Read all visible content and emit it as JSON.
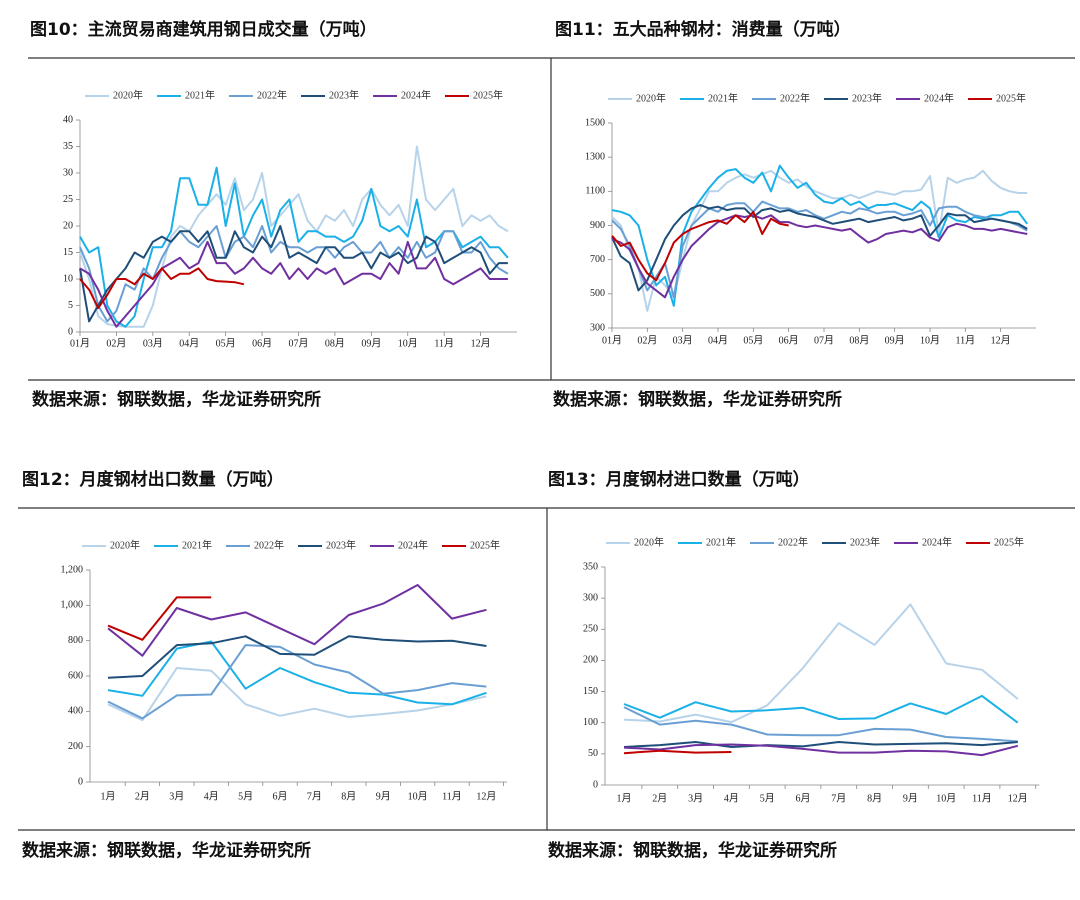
{
  "chart_data": [
    {
      "type": "line",
      "title": "图10：主流贸易商建筑用钢日成交量（万吨）",
      "source": "数据来源：钢联数据，华龙证券研究所",
      "x": [
        0,
        1,
        2,
        3,
        4,
        5,
        6,
        7,
        8,
        9,
        10,
        11,
        12,
        13,
        14,
        15,
        16,
        17,
        18,
        19,
        20,
        21,
        22,
        23,
        24,
        25,
        26,
        27,
        28,
        29,
        30,
        31,
        32,
        33,
        34,
        35,
        36,
        37,
        38,
        39,
        40,
        41,
        42,
        43,
        44,
        45,
        46,
        47
      ],
      "xlim": [
        0,
        48
      ],
      "xticks": [
        {
          "value": 0,
          "label": "01月"
        },
        {
          "value": 4,
          "label": "02月"
        },
        {
          "value": 8,
          "label": "03月"
        },
        {
          "value": 12,
          "label": "04月"
        },
        {
          "value": 16,
          "label": "05月"
        },
        {
          "value": 20,
          "label": "06月"
        },
        {
          "value": 24,
          "label": "07月"
        },
        {
          "value": 28,
          "label": "08月"
        },
        {
          "value": 32,
          "label": "09月"
        },
        {
          "value": 36,
          "label": "10月"
        },
        {
          "value": 40,
          "label": "11月"
        },
        {
          "value": 44,
          "label": "12月"
        }
      ],
      "ylim": [
        0,
        40
      ],
      "yticks": [
        0,
        5,
        10,
        15,
        20,
        25,
        30,
        35,
        40
      ],
      "series": [
        {
          "name": "2020年",
          "color": "#b7d3ea",
          "values": [
            15,
            10,
            3,
            1.5,
            1.2,
            1,
            1,
            1,
            5,
            12,
            18,
            20,
            19,
            22,
            24,
            26,
            24,
            29,
            23,
            25,
            30,
            20,
            22,
            24,
            26,
            21,
            19,
            22,
            21,
            23,
            20,
            25,
            27,
            24,
            22,
            24,
            20,
            35,
            25,
            23,
            25,
            27,
            20,
            22,
            21,
            22,
            20,
            19
          ]
        },
        {
          "name": "2021年",
          "color": "#1ab0e8",
          "values": [
            18,
            15,
            16,
            5,
            2,
            1,
            3,
            10,
            16,
            16,
            19,
            29,
            29,
            24,
            24,
            31,
            20,
            28,
            18,
            22,
            25,
            18,
            23,
            25,
            17,
            19,
            19,
            18,
            18,
            17,
            18,
            21,
            27,
            20,
            19,
            20,
            18,
            25,
            16,
            17,
            19,
            19,
            16,
            17,
            18,
            16,
            16,
            14
          ]
        },
        {
          "name": "2022年",
          "color": "#6a9fd4",
          "values": [
            16,
            12,
            5,
            2,
            4,
            9,
            8,
            12,
            10,
            14,
            17,
            19,
            17,
            16,
            18,
            20,
            14,
            17,
            18,
            16,
            20,
            15,
            17,
            16,
            16,
            15,
            16,
            16,
            14,
            16,
            17,
            15,
            15,
            17,
            14,
            16,
            14,
            17,
            14,
            15,
            19,
            19,
            15,
            15,
            17,
            14,
            12,
            11
          ]
        },
        {
          "name": "2023年",
          "color": "#1f4e79",
          "values": [
            12,
            2,
            5,
            8,
            10,
            12,
            15,
            14,
            17,
            18,
            17,
            19,
            19,
            17,
            19,
            14,
            14,
            19,
            16,
            15,
            18,
            16,
            20,
            14,
            15,
            14,
            13,
            16,
            16,
            14,
            14,
            15,
            12,
            15,
            14,
            15,
            13,
            14,
            18,
            17,
            13,
            14,
            15,
            16,
            15,
            11,
            13,
            13
          ]
        },
        {
          "name": "2024年",
          "color": "#7030a0",
          "values": [
            12,
            11,
            8,
            4,
            1,
            3,
            5,
            7,
            9,
            12,
            13,
            14,
            12,
            13,
            17,
            13,
            13,
            11,
            12,
            14,
            12,
            11,
            13,
            10,
            12,
            10,
            12,
            11,
            12,
            9,
            10,
            11,
            11,
            10,
            13,
            11,
            17,
            12,
            12,
            14,
            10,
            9,
            10,
            11,
            12,
            10,
            10,
            10
          ]
        },
        {
          "name": "2025年",
          "color": "#c00000",
          "values": [
            10,
            8,
            4.5,
            7,
            10,
            10,
            9,
            11,
            10,
            12,
            10,
            11,
            11,
            12,
            10,
            9.6,
            9.5,
            9.4,
            9,
            null,
            null,
            null,
            null,
            null,
            null,
            null,
            null,
            null,
            null,
            null,
            null,
            null,
            null,
            null,
            null,
            null,
            null,
            null,
            null,
            null,
            null,
            null,
            null,
            null,
            null,
            null,
            null,
            null
          ]
        }
      ]
    },
    {
      "type": "line",
      "title": "图11：五大品种钢材：消费量（万吨）",
      "source": "数据来源：钢联数据，华龙证券研究所",
      "x": [
        0,
        1,
        2,
        3,
        4,
        5,
        6,
        7,
        8,
        9,
        10,
        11,
        12,
        13,
        14,
        15,
        16,
        17,
        18,
        19,
        20,
        21,
        22,
        23,
        24,
        25,
        26,
        27,
        28,
        29,
        30,
        31,
        32,
        33,
        34,
        35,
        36,
        37,
        38,
        39,
        40,
        41,
        42,
        43,
        44,
        45,
        46,
        47
      ],
      "xlim": [
        0,
        48
      ],
      "xticks": [
        {
          "value": 0,
          "label": "01月"
        },
        {
          "value": 4,
          "label": "02月"
        },
        {
          "value": 8,
          "label": "03月"
        },
        {
          "value": 12,
          "label": "04月"
        },
        {
          "value": 16,
          "label": "05月"
        },
        {
          "value": 20,
          "label": "06月"
        },
        {
          "value": 24,
          "label": "07月"
        },
        {
          "value": 28,
          "label": "08月"
        },
        {
          "value": 32,
          "label": "09月"
        },
        {
          "value": 36,
          "label": "10月"
        },
        {
          "value": 40,
          "label": "11月"
        },
        {
          "value": 44,
          "label": "12月"
        }
      ],
      "ylim": [
        300,
        1500
      ],
      "yticks": [
        300,
        500,
        700,
        900,
        1100,
        1300,
        1500
      ],
      "series": [
        {
          "name": "2020年",
          "color": "#b7d3ea",
          "values": [
            950,
            900,
            750,
            650,
            400,
            600,
            550,
            480,
            700,
            900,
            1000,
            1100,
            1100,
            1150,
            1180,
            1200,
            1180,
            1200,
            1220,
            1180,
            1150,
            1170,
            1130,
            1100,
            1080,
            1060,
            1060,
            1080,
            1060,
            1080,
            1100,
            1090,
            1080,
            1100,
            1100,
            1110,
            1190,
            850,
            1180,
            1150,
            1170,
            1180,
            1220,
            1160,
            1120,
            1100,
            1090,
            1090
          ]
        },
        {
          "name": "2021年",
          "color": "#1ab0e8",
          "values": [
            990,
            980,
            960,
            900,
            700,
            550,
            600,
            430,
            850,
            980,
            1050,
            1120,
            1180,
            1220,
            1230,
            1180,
            1150,
            1210,
            1100,
            1250,
            1180,
            1120,
            1150,
            1080,
            1040,
            1030,
            1060,
            1020,
            1040,
            1000,
            1020,
            1020,
            1030,
            1010,
            990,
            1040,
            1000,
            830,
            960,
            930,
            920,
            950,
            940,
            960,
            960,
            980,
            980,
            910
          ]
        },
        {
          "name": "2022年",
          "color": "#6a9fd4",
          "values": [
            930,
            880,
            780,
            650,
            520,
            600,
            680,
            480,
            780,
            900,
            950,
            1000,
            980,
            1020,
            1030,
            1030,
            980,
            1040,
            1020,
            1000,
            1000,
            980,
            990,
            960,
            940,
            960,
            980,
            970,
            1000,
            990,
            970,
            980,
            980,
            960,
            970,
            990,
            900,
            1000,
            1010,
            1010,
            980,
            960,
            950,
            940,
            930,
            920,
            900,
            870
          ]
        },
        {
          "name": "2023年",
          "color": "#1f4e79",
          "values": [
            830,
            720,
            680,
            520,
            580,
            700,
            820,
            900,
            960,
            1000,
            1020,
            1000,
            1010,
            990,
            1000,
            1000,
            950,
            990,
            1000,
            980,
            990,
            970,
            960,
            950,
            930,
            910,
            920,
            930,
            940,
            920,
            930,
            940,
            950,
            930,
            940,
            960,
            840,
            900,
            970,
            960,
            960,
            920,
            930,
            940,
            930,
            920,
            910,
            880
          ]
        },
        {
          "name": "2024年",
          "color": "#7030a0",
          "values": [
            820,
            800,
            760,
            650,
            560,
            520,
            480,
            600,
            700,
            780,
            830,
            880,
            920,
            940,
            960,
            950,
            960,
            940,
            960,
            920,
            920,
            900,
            890,
            900,
            890,
            880,
            870,
            880,
            840,
            800,
            820,
            850,
            860,
            870,
            860,
            880,
            830,
            810,
            890,
            910,
            900,
            880,
            880,
            870,
            880,
            870,
            860,
            850
          ]
        },
        {
          "name": "2025年",
          "color": "#c00000",
          "values": [
            840,
            780,
            800,
            700,
            620,
            580,
            680,
            800,
            850,
            880,
            900,
            920,
            930,
            910,
            960,
            920,
            980,
            850,
            940,
            910,
            900,
            null,
            null,
            null,
            null,
            null,
            null,
            null,
            null,
            null,
            null,
            null,
            null,
            null,
            null,
            null,
            null,
            null,
            null,
            null,
            null,
            null,
            null,
            null,
            null,
            null,
            null,
            null
          ]
        }
      ]
    },
    {
      "type": "line",
      "title": "图12：月度钢材出口数量（万吨）",
      "source": "数据来源：钢联数据，华龙证券研究所",
      "categories": [
        "1月",
        "2月",
        "3月",
        "4月",
        "5月",
        "6月",
        "7月",
        "8月",
        "9月",
        "10月",
        "11月",
        "12月"
      ],
      "ylim": [
        0,
        1200
      ],
      "yticks": [
        0,
        200,
        400,
        600,
        800,
        {
          "value": 1000,
          "label": "1,000"
        },
        {
          "value": 1200,
          "label": "1,200"
        }
      ],
      "series": [
        {
          "name": "2020年",
          "color": "#b7d3ea",
          "values": [
            440,
            350,
            645,
            630,
            440,
            375,
            415,
            368,
            385,
            405,
            440,
            485
          ]
        },
        {
          "name": "2021年",
          "color": "#1ab0e8",
          "values": [
            520,
            488,
            755,
            795,
            528,
            645,
            565,
            505,
            495,
            450,
            440,
            505
          ]
        },
        {
          "name": "2022年",
          "color": "#6a9fd4",
          "values": [
            455,
            360,
            490,
            495,
            775,
            765,
            665,
            620,
            500,
            520,
            560,
            540
          ]
        },
        {
          "name": "2023年",
          "color": "#1f4e79",
          "values": [
            590,
            600,
            775,
            785,
            825,
            725,
            720,
            825,
            805,
            795,
            800,
            770
          ]
        },
        {
          "name": "2024年",
          "color": "#7030a0",
          "values": [
            870,
            715,
            985,
            920,
            960,
            870,
            780,
            945,
            1010,
            1115,
            925,
            975
          ]
        },
        {
          "name": "2025年",
          "color": "#c00000",
          "values": [
            885,
            805,
            1045,
            1045,
            null,
            null,
            null,
            null,
            null,
            null,
            null,
            null
          ]
        }
      ]
    },
    {
      "type": "line",
      "title": "图13：月度钢材进口数量（万吨）",
      "source": "数据来源：钢联数据，华龙证券研究所",
      "categories": [
        "1月",
        "2月",
        "3月",
        "4月",
        "5月",
        "6月",
        "7月",
        "8月",
        "9月",
        "10月",
        "11月",
        "12月"
      ],
      "ylim": [
        0,
        350
      ],
      "yticks": [
        0,
        50,
        100,
        150,
        200,
        250,
        300,
        350
      ],
      "series": [
        {
          "name": "2020年",
          "color": "#b7d3ea",
          "values": [
            105,
            102,
            113,
            101,
            128,
            188,
            260,
            225,
            290,
            195,
            185,
            138
          ]
        },
        {
          "name": "2021年",
          "color": "#1ab0e8",
          "values": [
            130,
            108,
            133,
            118,
            120,
            124,
            106,
            107,
            131,
            114,
            143,
            100
          ]
        },
        {
          "name": "2022年",
          "color": "#6a9fd4",
          "values": [
            125,
            97,
            103,
            97,
            81,
            80,
            80,
            90,
            89,
            77,
            74,
            70
          ]
        },
        {
          "name": "2023年",
          "color": "#1f4e79",
          "values": [
            61,
            64,
            69,
            61,
            64,
            62,
            69,
            65,
            66,
            67,
            64,
            69
          ]
        },
        {
          "name": "2024年",
          "color": "#7030a0",
          "values": [
            60,
            57,
            64,
            65,
            63,
            58,
            52,
            52,
            55,
            54,
            48,
            63
          ]
        },
        {
          "name": "2025年",
          "color": "#c00000",
          "values": [
            51,
            55,
            52,
            53,
            null,
            null,
            null,
            null,
            null,
            null,
            null,
            null
          ]
        }
      ]
    }
  ]
}
